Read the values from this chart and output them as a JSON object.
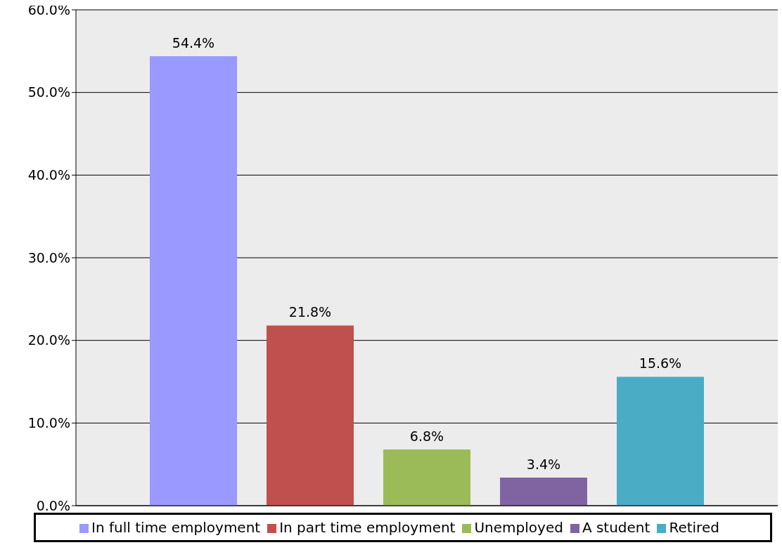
{
  "chart_data": {
    "type": "bar",
    "categories": [
      null
    ],
    "series": [
      {
        "name": "In full time employment",
        "color": "#9999ff",
        "values": [
          54.4
        ],
        "value_labels": [
          "54.4%"
        ]
      },
      {
        "name": "In part time employment",
        "color": "#c0504d",
        "values": [
          21.8
        ],
        "value_labels": [
          "21.8%"
        ]
      },
      {
        "name": "Unemployed",
        "color": "#9bbb59",
        "values": [
          6.8
        ],
        "value_labels": [
          "6.8%"
        ]
      },
      {
        "name": "A student",
        "color": "#8064a2",
        "values": [
          3.4
        ],
        "value_labels": [
          "3.4%"
        ]
      },
      {
        "name": "Retired",
        "color": "#4bacc6",
        "values": [
          15.6
        ],
        "value_labels": [
          "15.6%"
        ]
      }
    ],
    "ylim": [
      0,
      60
    ],
    "yticks": [
      {
        "value": 0,
        "label": "0.0%"
      },
      {
        "value": 10,
        "label": "10.0%"
      },
      {
        "value": 20,
        "label": "20.0%"
      },
      {
        "value": 30,
        "label": "30.0%"
      },
      {
        "value": 40,
        "label": "40.0%"
      },
      {
        "value": 50,
        "label": "50.0%"
      },
      {
        "value": 60,
        "label": "60.0%"
      }
    ],
    "grid": "y",
    "legend": "bottom"
  }
}
